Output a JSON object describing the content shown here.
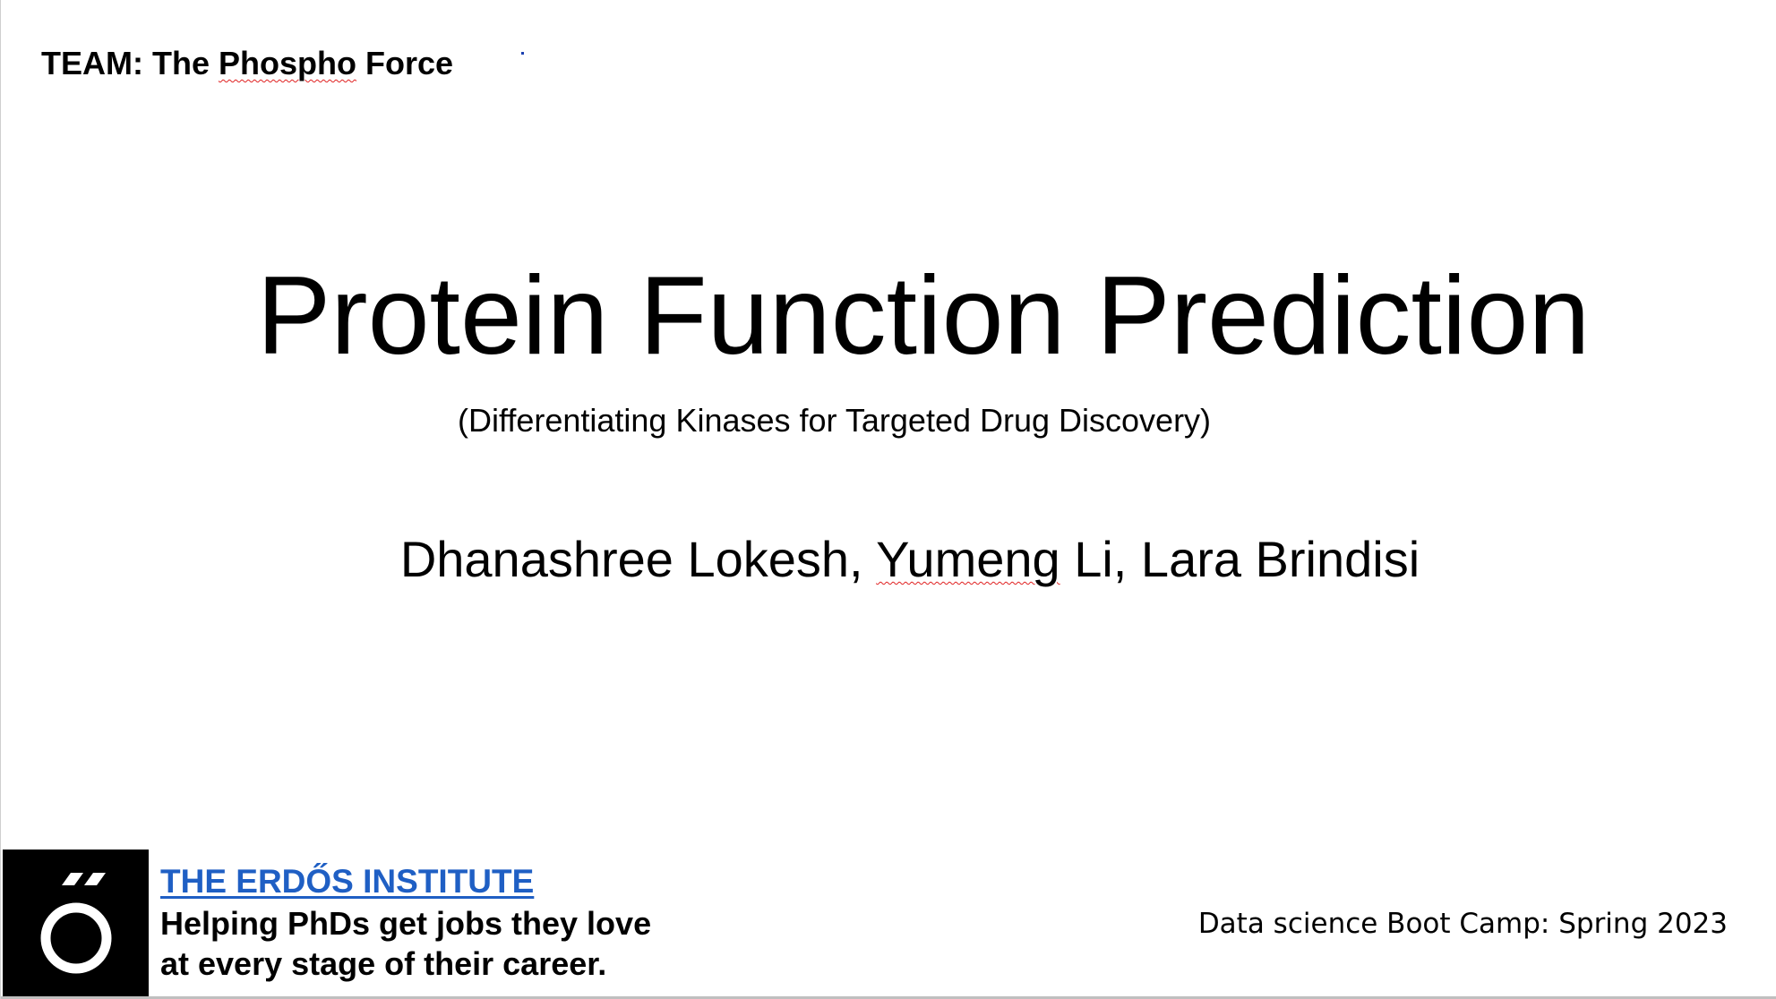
{
  "team": {
    "prefix": "TEAM: The ",
    "name_marked": "Phospho",
    "suffix": " Force"
  },
  "title": "Protein Function Prediction",
  "subtitle": "(Differentiating Kinases for Targeted Drug Discovery)",
  "authors": {
    "part1": "Dhanashree Lokesh, ",
    "marked": "Yumeng",
    "part2": " Li, Lara Brindisi"
  },
  "footer": {
    "logo_icon": "erdos-institute-logo-icon",
    "institute_name": "THE ERDŐS INSTITUTE",
    "tagline_line1": "Helping PhDs get jobs they love",
    "tagline_line2": "at every stage of their career.",
    "bootcamp": "Data science Boot Camp: Spring 2023"
  },
  "colors": {
    "link": "#1f5fc4",
    "spellcheck": "#e02020",
    "logo_bg": "#000000"
  }
}
